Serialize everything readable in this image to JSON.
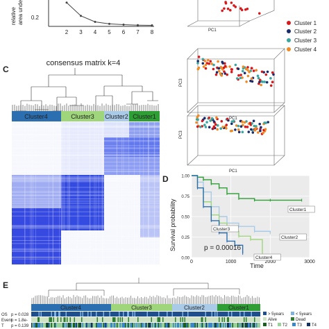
{
  "panels": {
    "c": "C",
    "d": "D",
    "e": "E"
  },
  "panel_b": {
    "ylabel_line1": "relative",
    "ylabel_line2": "area unde",
    "ytick": "0.2",
    "xticks": [
      "2",
      "3",
      "4",
      "5",
      "6",
      "7",
      "8"
    ]
  },
  "panel_c": {
    "title": "consensus matrix k=4",
    "clusters": [
      "Cluster4",
      "Cluster3",
      "Cluster2",
      "Cluster1"
    ],
    "colors": {
      "Cluster1": "#2e9e35",
      "Cluster2": "#a9cbe8",
      "Cluster3": "#9fd67c",
      "Cluster4": "#2c6fb0"
    }
  },
  "pca": {
    "xlabel": "PC1",
    "ylabel": "PC2",
    "zlabel": "PC3",
    "legend": [
      {
        "label": "Cluster 1",
        "color": "#d7191c"
      },
      {
        "label": "Cluster 2",
        "color": "#1a2c6b"
      },
      {
        "label": "Cluster 3",
        "color": "#3aa6a0"
      },
      {
        "label": "Cluster 4",
        "color": "#f08a24"
      }
    ]
  },
  "panel_d": {
    "ylabel": "Survival probability",
    "xlabel": "Time",
    "pvalue": "p = 0.00016",
    "yticks": [
      "0.00",
      "0.25",
      "0.50",
      "0.75",
      "1.00"
    ],
    "xticks": [
      "0",
      "1000",
      "2000",
      "3000"
    ],
    "curve_labels": [
      "Cluster1",
      "Cluster2",
      "Cluster3",
      "Cluster4"
    ]
  },
  "panel_e": {
    "clusters": [
      "Cluster4",
      "Cluster3",
      "Cluster2",
      "Cluster1"
    ],
    "rows": [
      {
        "name": "OS",
        "p": "p = 0.028"
      },
      {
        "name": "Event",
        "p": "p = 1.8e-"
      },
      {
        "name": "T",
        "p": "p = 0.139"
      }
    ],
    "legend": [
      "> 5years",
      "< 5years",
      "Alive",
      "Dead",
      "T1",
      "T2",
      "T3",
      "T4"
    ]
  },
  "chart_data": [
    {
      "type": "line",
      "title": "",
      "x": [
        2,
        3,
        4,
        5,
        6,
        7,
        8
      ],
      "series": [
        {
          "values": [
            0.95,
            0.42,
            0.18,
            0.1,
            0.07,
            0.05,
            0.04
          ]
        }
      ],
      "ylabel": "relative area under"
    },
    {
      "type": "line",
      "title": "",
      "xlabel": "Time",
      "ylabel": "Survival probability",
      "xlim": [
        0,
        3000
      ],
      "ylim": [
        0,
        1
      ],
      "series": [
        {
          "name": "Cluster1",
          "color": "#2e9e35",
          "x": [
            0,
            150,
            300,
            500,
            700,
            900,
            1200,
            1600,
            2000,
            2800
          ],
          "values": [
            1.0,
            0.98,
            0.95,
            0.9,
            0.85,
            0.78,
            0.72,
            0.7,
            0.7,
            0.7
          ]
        },
        {
          "name": "Cluster2",
          "color": "#a9cbe8",
          "x": [
            0,
            150,
            300,
            500,
            700,
            900,
            1200,
            1600,
            2000
          ],
          "values": [
            1.0,
            0.92,
            0.8,
            0.62,
            0.5,
            0.42,
            0.38,
            0.32,
            0.3
          ]
        },
        {
          "name": "Cluster3",
          "color": "#9fd67c",
          "x": [
            0,
            150,
            300,
            500,
            700,
            900,
            1200,
            1500,
            1800
          ],
          "values": [
            1.0,
            0.85,
            0.68,
            0.52,
            0.42,
            0.32,
            0.26,
            0.22,
            0.05
          ]
        },
        {
          "name": "Cluster4",
          "color": "#2c6fb0",
          "x": [
            0,
            150,
            300,
            500,
            700,
            900,
            1100,
            1300
          ],
          "values": [
            1.0,
            0.85,
            0.62,
            0.45,
            0.3,
            0.2,
            0.15,
            0.05
          ]
        }
      ]
    }
  ]
}
